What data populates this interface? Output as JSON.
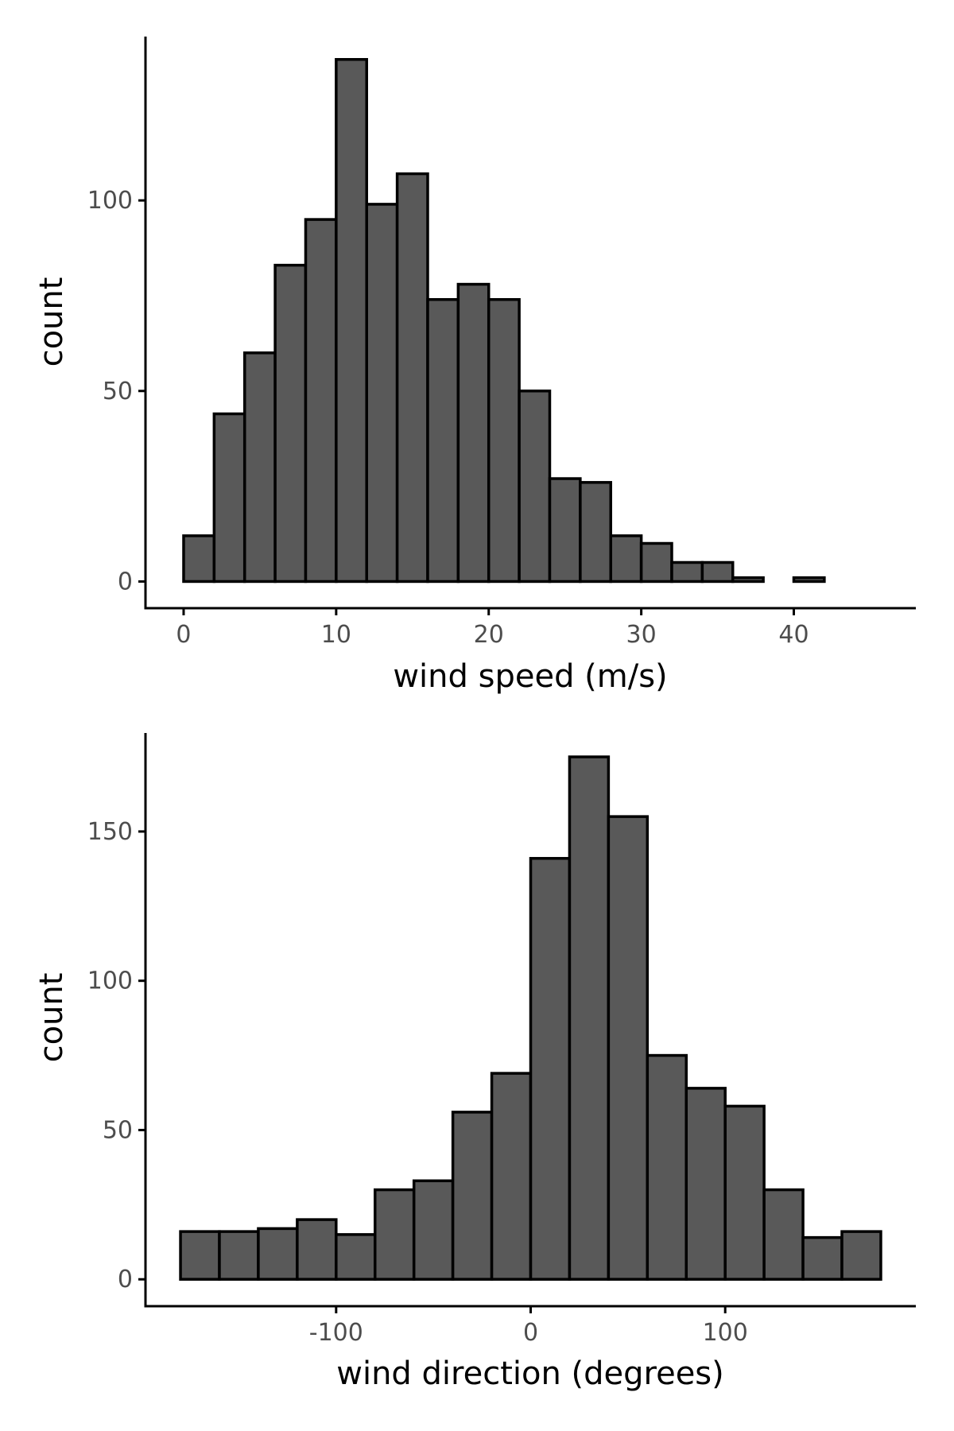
{
  "chart_data": [
    {
      "type": "bar",
      "subtype": "histogram",
      "xlabel": "wind speed (m/s)",
      "ylabel": "count",
      "xlim": [
        -2.5,
        48
      ],
      "ylim": [
        -7,
        143
      ],
      "xticks": [
        0,
        10,
        20,
        30,
        40
      ],
      "xtick_labels": [
        "0",
        "10",
        "20",
        "30",
        "40"
      ],
      "yticks": [
        0,
        50,
        100
      ],
      "ytick_labels": [
        "0",
        "50",
        "100"
      ],
      "bin_edges": [
        0,
        2,
        4,
        6,
        8,
        10,
        12,
        14,
        16,
        18,
        20,
        22,
        24,
        26,
        28,
        30,
        32,
        34,
        36,
        38,
        40,
        42,
        44,
        46
      ],
      "values": [
        12,
        44,
        60,
        83,
        95,
        137,
        99,
        107,
        74,
        78,
        74,
        50,
        27,
        26,
        12,
        10,
        5,
        5,
        1,
        0,
        1,
        0,
        0
      ],
      "fill_color": "#595959",
      "edge_color": "#000000",
      "grid": false
    },
    {
      "type": "bar",
      "subtype": "histogram",
      "xlabel": "wind direction (degrees)",
      "ylabel": "count",
      "xlim": [
        -198,
        198
      ],
      "ylim": [
        -9,
        183
      ],
      "xticks": [
        -100,
        0,
        100
      ],
      "xtick_labels": [
        "-100",
        "0",
        "100"
      ],
      "yticks": [
        0,
        50,
        100,
        150
      ],
      "ytick_labels": [
        "0",
        "50",
        "100",
        "150"
      ],
      "bin_edges": [
        -180,
        -160,
        -140,
        -120,
        -100,
        -80,
        -60,
        -40,
        -20,
        0,
        20,
        40,
        60,
        80,
        100,
        120,
        140,
        160,
        180
      ],
      "values": [
        16,
        16,
        17,
        20,
        15,
        30,
        33,
        56,
        69,
        141,
        175,
        155,
        75,
        64,
        58,
        30,
        14,
        16
      ],
      "fill_color": "#595959",
      "edge_color": "#000000",
      "grid": false
    }
  ]
}
